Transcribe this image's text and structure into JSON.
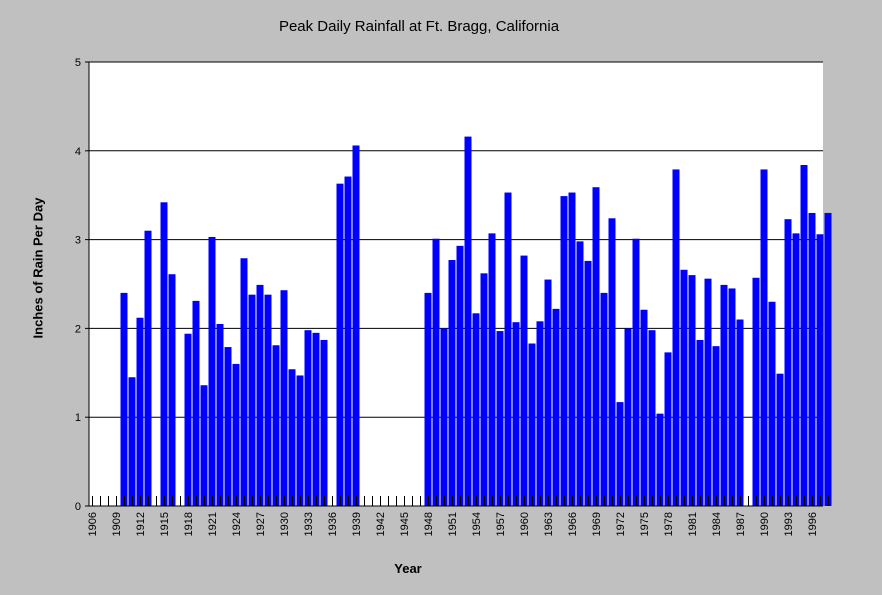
{
  "chart_data": {
    "type": "bar",
    "title": "Peak Daily Rainfall at Ft. Bragg, California",
    "xlabel": "Year",
    "ylabel": "Inches of Rain Per Day",
    "ylim": [
      0,
      5
    ],
    "yticks": [
      0,
      1,
      2,
      3,
      4,
      5
    ],
    "grid": true,
    "bar_color": "#0000ff",
    "background_color": "#ffffff",
    "x_tick_labels": [
      "1906",
      "1909",
      "1912",
      "1915",
      "1918",
      "1921",
      "1924",
      "1927",
      "1930",
      "1933",
      "1936",
      "1939",
      "1942",
      "1945",
      "1948",
      "1951",
      "1954",
      "1957",
      "1960",
      "1963",
      "1966",
      "1969",
      "1972",
      "1975",
      "1978",
      "1981",
      "1984",
      "1987",
      "1990",
      "1993",
      "1996"
    ],
    "categories": [
      "1906",
      "1907",
      "1908",
      "1909",
      "1910",
      "1911",
      "1912",
      "1913",
      "1914",
      "1915",
      "1916",
      "1917",
      "1918",
      "1919",
      "1920",
      "1921",
      "1922",
      "1923",
      "1924",
      "1925",
      "1926",
      "1927",
      "1928",
      "1929",
      "1930",
      "1931",
      "1932",
      "1933",
      "1934",
      "1935",
      "1936",
      "1937",
      "1938",
      "1939",
      "1940",
      "1941",
      "1942",
      "1943",
      "1944",
      "1945",
      "1946",
      "1947",
      "1948",
      "1949",
      "1950",
      "1951",
      "1952",
      "1953",
      "1954",
      "1955",
      "1956",
      "1957",
      "1958",
      "1959",
      "1960",
      "1961",
      "1962",
      "1963",
      "1964",
      "1965",
      "1966",
      "1967",
      "1968",
      "1969",
      "1970",
      "1971",
      "1972",
      "1973",
      "1974",
      "1975",
      "1976",
      "1977",
      "1978",
      "1979",
      "1980",
      "1981",
      "1982",
      "1983",
      "1984",
      "1985",
      "1986",
      "1987",
      "1988",
      "1989",
      "1990",
      "1991",
      "1992",
      "1993",
      "1994",
      "1995",
      "1996",
      "1997",
      "1998"
    ],
    "values": [
      null,
      null,
      null,
      null,
      2.4,
      1.45,
      2.12,
      3.1,
      null,
      3.42,
      2.61,
      null,
      1.94,
      2.31,
      1.36,
      3.03,
      2.05,
      1.79,
      1.6,
      2.79,
      2.38,
      2.49,
      2.38,
      1.81,
      2.43,
      1.54,
      1.47,
      1.98,
      1.95,
      1.87,
      null,
      3.63,
      3.71,
      4.06,
      null,
      null,
      null,
      null,
      null,
      null,
      null,
      null,
      2.4,
      3.01,
      2.0,
      2.77,
      2.93,
      4.16,
      2.17,
      2.62,
      3.07,
      1.97,
      3.53,
      2.07,
      2.82,
      1.83,
      2.08,
      2.55,
      2.22,
      3.49,
      3.53,
      2.98,
      2.76,
      3.59,
      2.4,
      3.24,
      1.17,
      2.0,
      3.01,
      2.21,
      1.98,
      1.04,
      1.73,
      3.79,
      2.66,
      2.6,
      1.87,
      2.56,
      1.8,
      2.49,
      2.45,
      2.1,
      null,
      2.57,
      3.79,
      2.3,
      1.49,
      3.23,
      3.07,
      3.84,
      3.3,
      3.06,
      3.3
    ]
  }
}
